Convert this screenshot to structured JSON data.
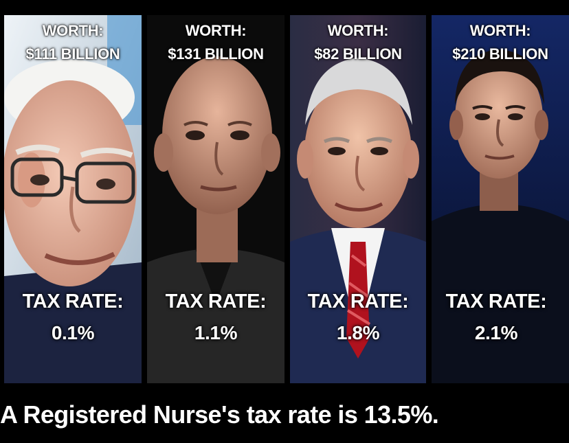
{
  "people": [
    {
      "worth_label": "WORTH:",
      "worth_value": "$111 BILLION",
      "tax_label": "TAX RATE:",
      "tax_value": "0.1%"
    },
    {
      "worth_label": "WORTH:",
      "worth_value": "$131 BILLION",
      "tax_label": "TAX RATE:",
      "tax_value": "1.1%"
    },
    {
      "worth_label": "WORTH:",
      "worth_value": "$82 BILLION",
      "tax_label": "TAX RATE:",
      "tax_value": "1.8%"
    },
    {
      "worth_label": "WORTH:",
      "worth_value": "$210 BILLION",
      "tax_label": "TAX RATE:",
      "tax_value": "2.1%"
    }
  ],
  "caption": "A Registered Nurse's tax rate is 13.5%.",
  "colors": {
    "background": "#000000",
    "text": "#ffffff",
    "panel_1_bg": "#dde6ee",
    "panel_2_bg": "#0b0b0b",
    "panel_3_bg": "#232638",
    "panel_4_bg": "#0a1431"
  }
}
